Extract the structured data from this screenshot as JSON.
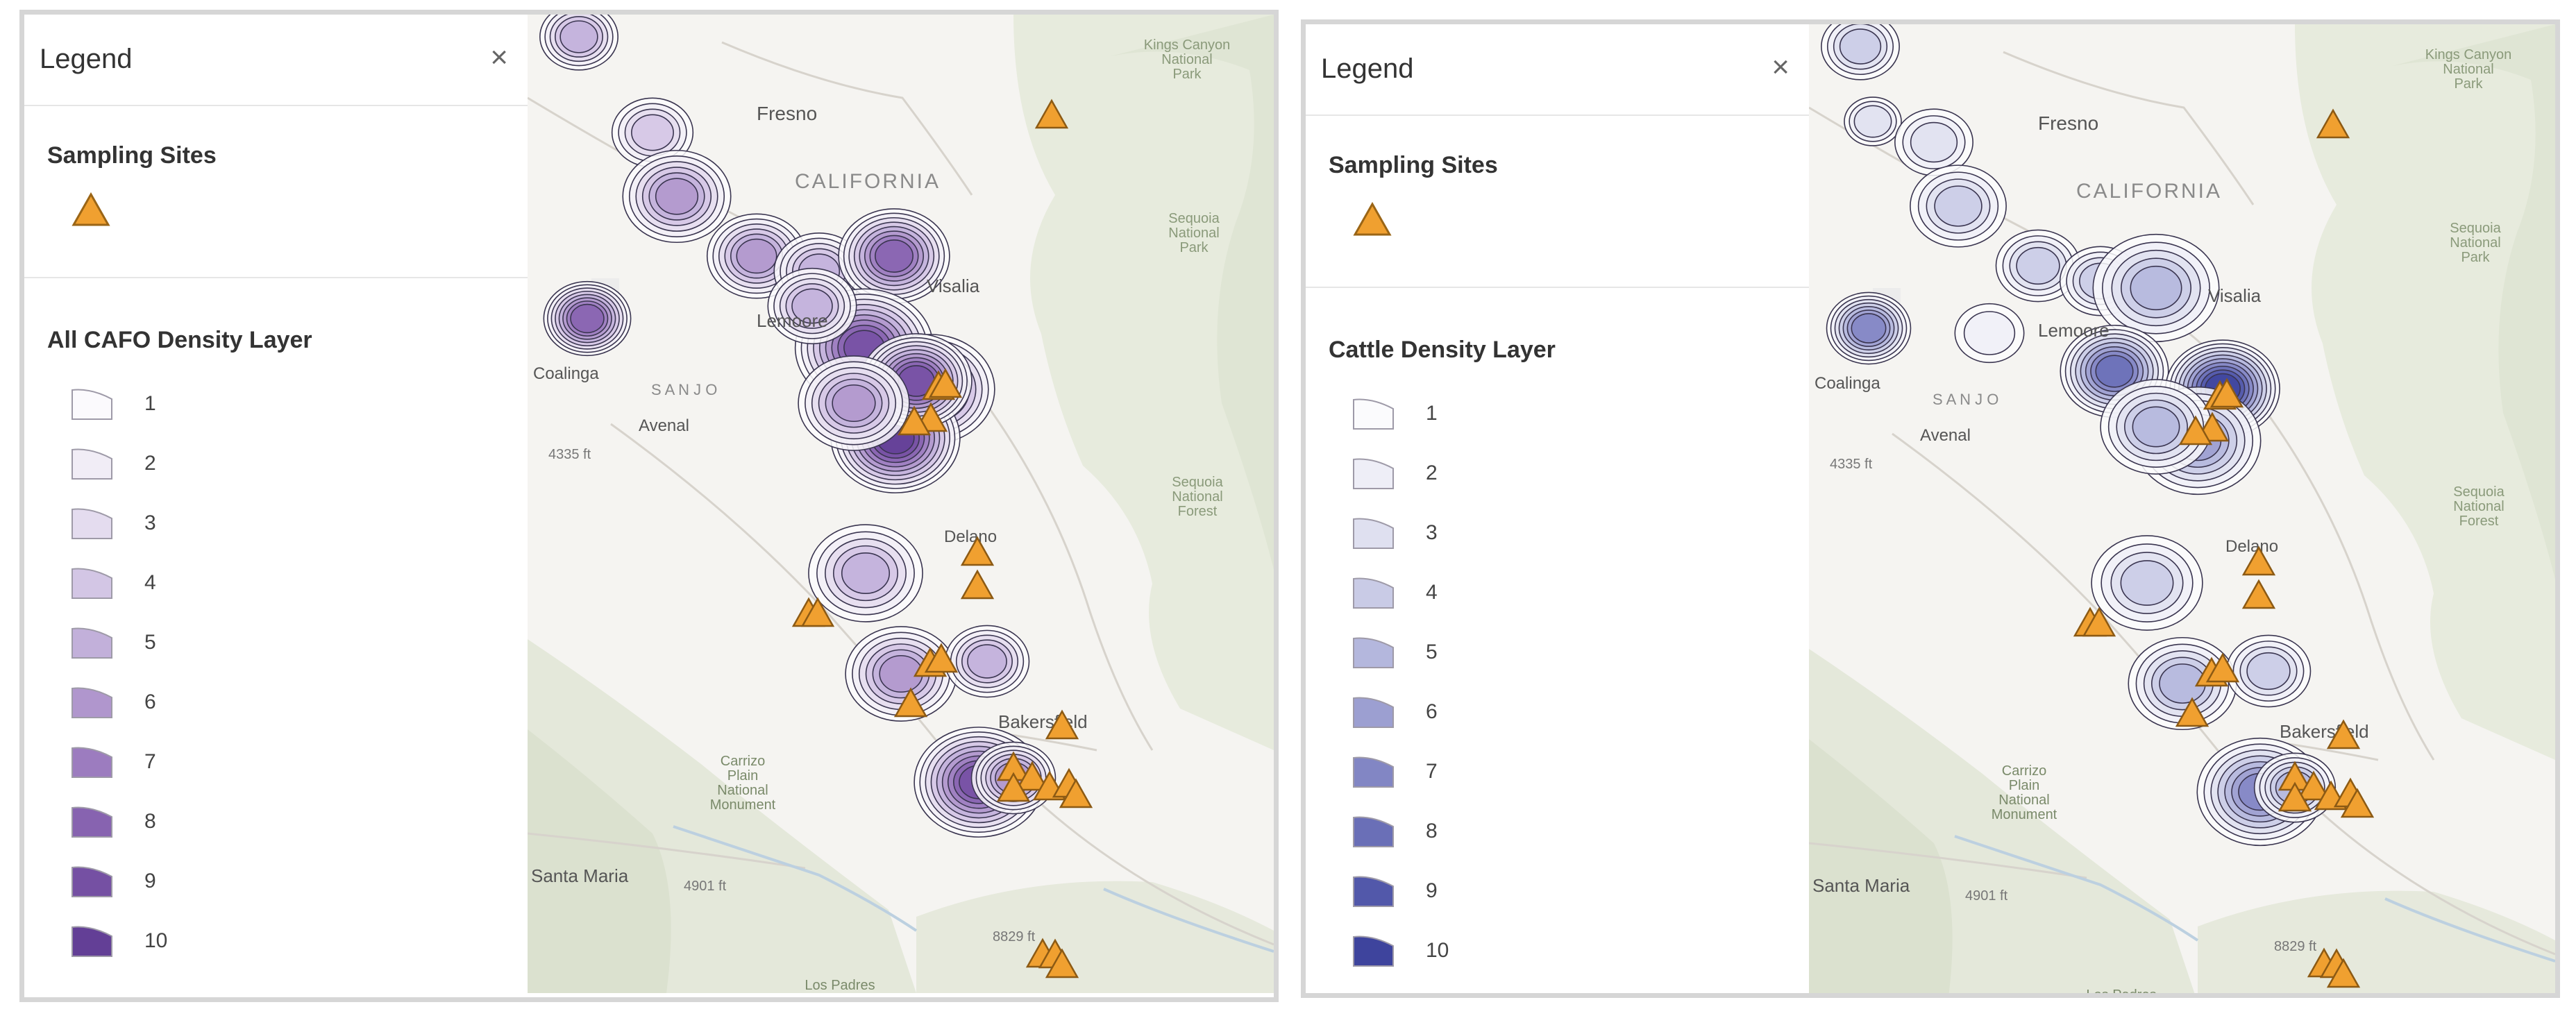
{
  "panels": [
    {
      "legend_title": "Legend",
      "close_glyph": "×",
      "sites_label": "Sampling Sites",
      "density_label": "All CAFO Density Layer",
      "levels": [
        "1",
        "2",
        "3",
        "4",
        "5",
        "6",
        "7",
        "8",
        "9",
        "10"
      ],
      "colors": [
        "#fbfafd",
        "#f1edf6",
        "#e4dcef",
        "#d3c6e5",
        "#c2b0da",
        "#b096cd",
        "#9c7cbf",
        "#8763b0",
        "#7550a3",
        "#633f96"
      ],
      "map_labels": {
        "fresno": "Fresno",
        "california": "CALIFORNIA",
        "coalinga": "Coalinga",
        "avenal": "Avenal",
        "lemoore": "Lemoore",
        "visalia": "Visalia",
        "delano": "Delano",
        "bakersfield": "Bakersfield",
        "santa_maria": "Santa Maria",
        "carrizo": "Carrizo\nPlain\nNational\nMonument",
        "sequoia": "Sequoia\nNational\nPark",
        "sequoia_forest": "Sequoia\nNational\nForest",
        "kings": "Kings Canyon\nNational\nPark",
        "san_joaquin": "S A N   J O",
        "elev1": "4335 ft",
        "elev2": "4901 ft",
        "elev3": "8829 ft",
        "los_padres": "Los Padres\nNational"
      }
    },
    {
      "legend_title": "Legend",
      "close_glyph": "×",
      "sites_label": "Sampling Sites",
      "density_label": "Cattle Density Layer",
      "levels": [
        "1",
        "2",
        "3",
        "4",
        "5",
        "6",
        "7",
        "8",
        "9",
        "10"
      ],
      "colors": [
        "#fbfbfd",
        "#eeeef7",
        "#dfe0f0",
        "#c9cbe6",
        "#b4b7dd",
        "#9c9fd1",
        "#8286c4",
        "#6a6fb7",
        "#5258aa",
        "#3e449d"
      ],
      "map_labels": {
        "fresno": "Fresno",
        "california": "CALIFORNIA",
        "coalinga": "Coalinga",
        "avenal": "Avenal",
        "lemoore": "Lemoore",
        "visalia": "Visalia",
        "delano": "Delano",
        "bakersfield": "Bakersfield",
        "santa_maria": "Santa Maria",
        "carrizo": "Carrizo\nPlain\nNational\nMonument",
        "sequoia": "Sequoia\nNational\nPark",
        "sequoia_forest": "Sequoia\nNational\nForest",
        "kings": "Kings Canyon\nNational\nPark",
        "san_joaquin": "S A N   J O",
        "elev1": "4335 ft",
        "elev2": "4901 ft",
        "elev3": "8829 ft",
        "los_padres": "Los Padres\nNational"
      }
    }
  ],
  "site_color": "#f0a030",
  "site_count": 28
}
